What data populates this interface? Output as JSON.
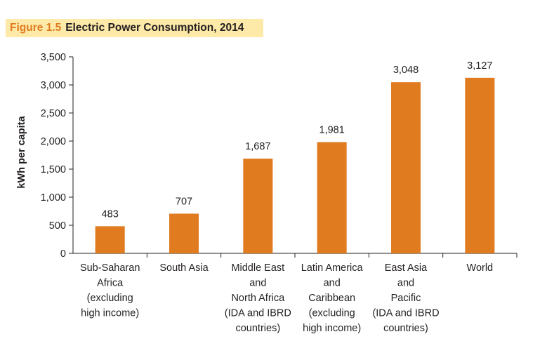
{
  "figure": {
    "number_label": "Figure 1.5",
    "title": "Electric Power Consumption, 2014"
  },
  "colors": {
    "bar": "#e07b1f",
    "title_number": "#e07b1f",
    "title_band": "#fde9a8",
    "axis": "#231f20"
  },
  "chart_data": {
    "type": "bar",
    "title": "Electric Power Consumption, 2014",
    "xlabel": "",
    "ylabel": "kWh per capita",
    "ylim": [
      0,
      3500
    ],
    "yticks": [
      0,
      500,
      1000,
      1500,
      2000,
      2500,
      3000,
      3500
    ],
    "ytick_labels": [
      "0",
      "500",
      "1,000",
      "1,500",
      "2,000",
      "2,500",
      "3,000",
      "3,500"
    ],
    "grid": false,
    "categories": [
      [
        "Sub-Saharan",
        "Africa",
        "(excluding",
        "high income)"
      ],
      [
        "South Asia"
      ],
      [
        "Middle East",
        "and",
        "North Africa",
        "(IDA and IBRD",
        "countries)"
      ],
      [
        "Latin America",
        "and",
        "Caribbean",
        "(excluding",
        "high income)"
      ],
      [
        "East Asia",
        "and",
        "Pacific",
        "(IDA and IBRD",
        "countries)"
      ],
      [
        "World"
      ]
    ],
    "values": [
      483,
      707,
      1687,
      1981,
      3048,
      3127
    ],
    "value_labels": [
      "483",
      "707",
      "1,687",
      "1,981",
      "3,048",
      "3,127"
    ]
  }
}
